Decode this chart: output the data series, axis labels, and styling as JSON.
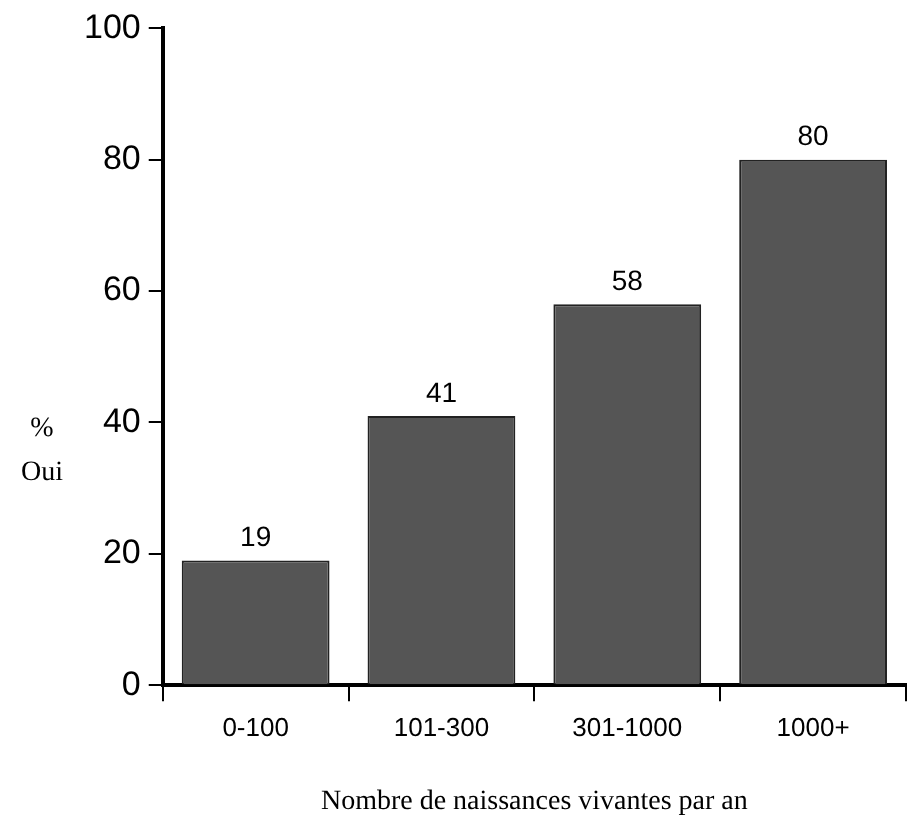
{
  "chart_data": {
    "type": "bar",
    "xlabel": "Nombre de naissances vivantes par an",
    "ylabel": "% Oui",
    "categories": [
      "0-100",
      "101-300",
      "301-1000",
      "1000+"
    ],
    "values": [
      19,
      41,
      58,
      80
    ],
    "color": "#555555",
    "ylim": [
      0,
      100
    ],
    "yticks": [
      0,
      20,
      40,
      60,
      80,
      100
    ],
    "grid": false,
    "data_labels": true
  }
}
